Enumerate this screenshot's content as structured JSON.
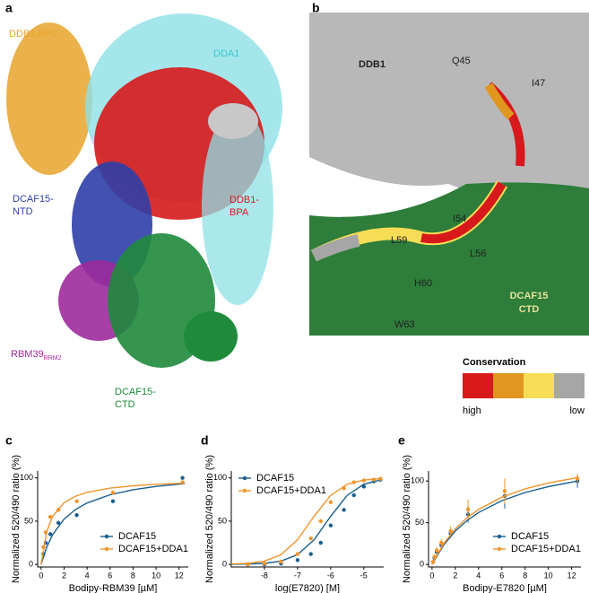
{
  "panels": [
    "a",
    "b",
    "c",
    "d",
    "e"
  ],
  "panel_a": {
    "labels": {
      "ddb1_bpc": "DDB1-BPC",
      "dda1": "DDA1",
      "dcaf15_ntd": [
        "DCAF15-",
        "NTD"
      ],
      "ddb1_bpa": [
        "DDB1-",
        "BPA"
      ],
      "rbm39": "RBM39",
      "rbm39_sub": "RRM2",
      "dcaf15_ctd": [
        "DCAF15-",
        "CTD"
      ]
    }
  },
  "panel_b": {
    "labels": {
      "ddb1": "DDB1",
      "q45": "Q45",
      "i47": "I47",
      "i54": "I54",
      "l59": "L59",
      "l56": "L56",
      "h60": "H60",
      "w63": "W63",
      "dcaf15_ctd": [
        "DCAF15",
        "CTD"
      ]
    },
    "conservation": {
      "title": "Conservation",
      "colors": [
        "#d7191c",
        "#e0961f",
        "#f7dd55",
        "#a6a6a6"
      ],
      "high": "high",
      "low": "low"
    }
  },
  "chart_data": [
    {
      "type": "scatter",
      "xlabel": "Bodipy-RBM39 [µM]",
      "ylabel": "Normalized 520/490 ratio (%)",
      "xlim": [
        -0.3,
        12.8
      ],
      "xticks": [
        0,
        2,
        4,
        6,
        8,
        10,
        12
      ],
      "ylim": [
        -3,
        108
      ],
      "yticks": [
        0,
        50,
        100
      ],
      "legend": "lower right",
      "series": [
        {
          "name": "DCAF15",
          "color": "#1a5f8e",
          "x": [
            0.2,
            0.4,
            0.8,
            1.5,
            3.1,
            6.25,
            12.3
          ],
          "values": [
            12,
            25,
            35,
            48,
            57,
            73,
            100
          ],
          "curve": {
            "x": [
              0,
              0.5,
              1,
              2,
              3,
              4,
              6,
              8,
              10,
              12.5
            ],
            "values": [
              0,
              20.4,
              34.4,
              52.4,
              63.5,
              71,
              80.5,
              86.3,
              90.2,
              93.5
            ]
          }
        },
        {
          "name": "DCAF15+DDA1",
          "color": "#f0952e",
          "x": [
            0.2,
            0.4,
            0.8,
            1.5,
            3.1,
            6.25,
            12.3
          ],
          "values": [
            20,
            37,
            55,
            63,
            73,
            83,
            95
          ],
          "curve": {
            "x": [
              0,
              0.5,
              1,
              2,
              3,
              4,
              6,
              8,
              10,
              12.5
            ],
            "values": [
              0,
              38.5,
              55.6,
              71.4,
              78.9,
              83.3,
              88.2,
              90.9,
              92.6,
              94
            ]
          }
        }
      ]
    },
    {
      "type": "scatter",
      "xlabel": "log(E7820) [M]",
      "ylabel": "Normalized 520/490 ratio (%)",
      "xlim": [
        -9,
        -4.4
      ],
      "xticks": [
        -8,
        -7,
        -6,
        -5
      ],
      "ylim": [
        -3,
        108
      ],
      "yticks": [
        0,
        50,
        100
      ],
      "legend": "upper left",
      "series": [
        {
          "name": "DCAF15",
          "color": "#1a5f8e",
          "x": [
            -8.5,
            -8,
            -7.5,
            -7,
            -6.6,
            -6.3,
            -6,
            -5.6,
            -5.3,
            -5,
            -4.7,
            -4.5
          ],
          "values": [
            0,
            0,
            1,
            5,
            12,
            25,
            45,
            63,
            80,
            90,
            96,
            98
          ],
          "curve": {
            "x": [
              -9,
              -8.5,
              -8,
              -7.5,
              -7,
              -6.5,
              -6,
              -5.5,
              -5,
              -4.5
            ],
            "values": [
              0.1,
              0.4,
              1.2,
              3.8,
              11.2,
              28.5,
              55.7,
              79.9,
              92.6,
              97.5
            ]
          }
        },
        {
          "name": "DCAF15+DDA1",
          "color": "#f0952e",
          "x": [
            -8.5,
            -8,
            -7.5,
            -7,
            -6.6,
            -6.3,
            -6,
            -5.6,
            -5.3,
            -5,
            -4.7,
            -4.5
          ],
          "values": [
            0,
            1,
            3,
            12,
            30,
            50,
            72,
            88,
            95,
            97,
            98,
            99
          ],
          "curve": {
            "x": [
              -9,
              -8.5,
              -8,
              -7.5,
              -7,
              -6.5,
              -6,
              -5.5,
              -5,
              -4.5
            ],
            "values": [
              0.4,
              1.2,
              3.8,
              11.2,
              28.5,
              55.7,
              79.9,
              92.6,
              97.5,
              99.2
            ]
          }
        }
      ]
    },
    {
      "type": "scatter",
      "xlabel": "Bodipy-E7820 [µM]",
      "ylabel": "Normalized 520/490 ratio (%)",
      "xlim": [
        -0.3,
        12.8
      ],
      "xticks": [
        0,
        2,
        4,
        6,
        8,
        10,
        12
      ],
      "ylim": [
        -3,
        112
      ],
      "yticks": [
        0,
        50,
        100
      ],
      "legend": "lower right",
      "series": [
        {
          "name": "DCAF15",
          "color": "#1a5f8e",
          "x": [
            0.1,
            0.2,
            0.4,
            0.8,
            1.6,
            3.1,
            6.25,
            12.5
          ],
          "values": [
            3,
            8,
            15,
            23,
            37,
            60,
            82,
            100
          ],
          "errors": [
            2,
            2,
            3,
            4,
            5,
            10,
            15,
            8
          ],
          "curve": {
            "x": [
              0,
              1,
              2,
              3,
              4,
              6,
              8,
              10,
              12.5
            ],
            "values": [
              0,
              23.3,
              40,
              52.5,
              62.2,
              76.4,
              86.2,
              93.3,
              100
            ]
          }
        },
        {
          "name": "DCAF15+DDA1",
          "color": "#f0952e",
          "x": [
            0.1,
            0.2,
            0.4,
            0.8,
            1.6,
            3.1,
            6.25,
            12.5
          ],
          "values": [
            3,
            9,
            17,
            26,
            40,
            66,
            88,
            103
          ],
          "errors": [
            2,
            3,
            4,
            5,
            6,
            12,
            15,
            5
          ],
          "curve": {
            "x": [
              0,
              1,
              2,
              3,
              4,
              6,
              8,
              10,
              12.5
            ],
            "values": [
              0,
              25,
              42.6,
              55.8,
              65.9,
              80.6,
              90.6,
              97.7,
              104
            ]
          }
        }
      ]
    }
  ]
}
